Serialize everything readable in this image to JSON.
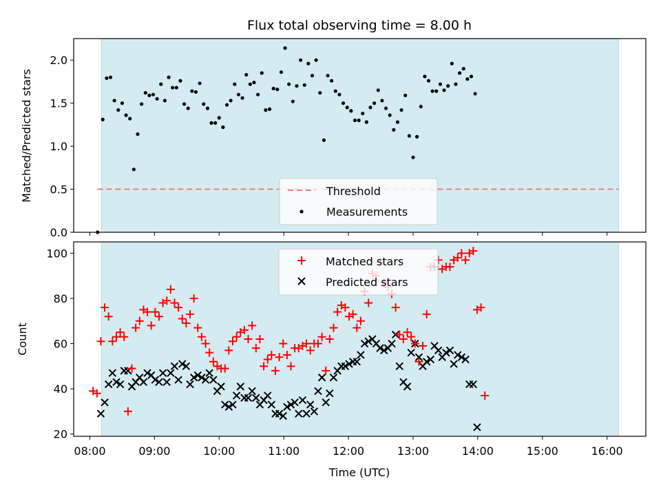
{
  "chart_data": {
    "type": "scatter",
    "title": "Flux total observing time = 8.00 h",
    "xlabel": "Time (UTC)",
    "x_ticks": [
      "08:00",
      "09:00",
      "10:00",
      "11:00",
      "12:00",
      "13:00",
      "14:00",
      "15:00",
      "16:00"
    ],
    "x_tick_hours": [
      8,
      9,
      10,
      11,
      12,
      13,
      14,
      15,
      16
    ],
    "xlim_hours": [
      7.75,
      16.6
    ],
    "observing_window_hours": [
      8.18,
      16.18
    ],
    "colors": {
      "window": "#d4ebf1",
      "window_edge": "#b8dbe6",
      "threshold": "#ec7d7d",
      "matched": "#ff0000",
      "predicted": "#000000",
      "measurement": "#000000"
    },
    "panels": [
      {
        "ylabel": "Matched/Predicted stars",
        "ylim": [
          0,
          2.25
        ],
        "y_ticks": [
          "0.0",
          "0.5",
          "1.0",
          "1.5",
          "2.0"
        ],
        "y_tick_values": [
          0,
          0.5,
          1,
          1.5,
          2
        ],
        "threshold": {
          "name": "Threshold",
          "value": 0.5,
          "x_range_hours": [
            8.18,
            16.18
          ]
        },
        "legend": [
          "Threshold",
          "Measurements"
        ],
        "series": [
          {
            "name": "Measurements",
            "t0_hours": 8.2,
            "dt_hours": 0.06,
            "values": [
              1.31,
              1.79,
              1.8,
              1.53,
              1.42,
              1.5,
              1.36,
              1.32,
              0.73,
              1.14,
              1.49,
              1.62,
              1.59,
              1.6,
              1.55,
              1.72,
              1.53,
              1.8,
              1.68,
              1.68,
              1.76,
              1.49,
              1.44,
              1.64,
              1.63,
              1.73,
              1.49,
              1.44,
              1.27,
              1.27,
              1.33,
              1.22,
              1.48,
              1.53,
              1.72,
              1.6,
              1.56,
              1.83,
              1.72,
              1.74,
              1.6,
              1.85,
              1.42,
              1.43,
              1.67,
              1.66,
              1.86,
              2.14,
              1.72,
              1.52,
              1.7,
              2.0,
              1.71,
              1.96,
              1.82,
              2.0,
              1.62,
              1.07,
              1.82,
              1.76,
              1.64,
              1.6,
              1.5,
              1.45,
              1.41,
              1.3,
              1.3,
              1.38,
              1.28,
              1.45,
              1.5,
              1.65,
              1.53,
              1.44,
              1.36,
              1.19,
              1.28,
              1.42,
              1.59,
              1.12,
              0.87,
              1.11,
              1.46,
              1.81,
              1.76,
              1.64,
              1.64,
              1.72,
              1.65,
              1.7,
              1.96,
              1.72,
              1.85,
              1.9,
              1.78,
              1.81,
              1.61
            ]
          }
        ],
        "extra_points": [
          {
            "name": "start-measurement",
            "x_hours": 8.12,
            "value": 0.0
          }
        ]
      },
      {
        "ylabel": "Count",
        "ylim": [
          19,
          105
        ],
        "y_ticks": [
          "20",
          "40",
          "60",
          "80",
          "100"
        ],
        "y_tick_values": [
          20,
          40,
          60,
          80,
          100
        ],
        "legend": [
          "Matched stars",
          "Predicted stars"
        ],
        "series": [
          {
            "name": "Matched stars",
            "t0_hours": 8.05,
            "dt_hours": 0.06,
            "values": [
              39,
              38,
              61,
              76,
              72,
              61,
              63,
              65,
              63,
              30,
              49,
              67,
              70,
              75,
              74,
              68,
              74,
              72,
              78,
              79,
              84,
              78,
              76,
              71,
              69,
              73,
              80,
              67,
              63,
              60,
              56,
              52,
              50,
              49,
              49,
              57,
              61,
              63,
              65,
              66,
              62,
              68,
              58,
              62,
              50,
              53,
              55,
              48,
              54,
              60,
              55,
              50,
              58,
              58,
              59,
              60,
              57,
              60,
              60,
              63,
              48,
              62,
              67,
              74,
              77,
              76,
              72,
              73,
              67,
              70,
              83,
              78,
              91,
              90,
              96,
              87,
              85,
              82,
              76,
              64,
              62,
              65,
              63,
              60,
              52,
              59,
              73,
              94,
              94,
              97,
              93,
              94,
              94,
              97,
              98,
              100,
              97,
              100,
              101,
              75,
              76,
              37
            ]
          },
          {
            "name": "Predicted stars",
            "t0_hours": 8.17,
            "dt_hours": 0.06,
            "values": [
              29,
              34,
              42,
              47,
              43,
              42,
              48,
              48,
              41,
              43,
              45,
              43,
              47,
              46,
              44,
              43,
              47,
              43,
              47,
              50,
              44,
              51,
              50,
              42,
              45,
              46,
              45,
              44,
              47,
              44,
              39,
              41,
              33,
              32,
              33,
              37,
              41,
              36,
              36,
              39,
              36,
              33,
              35,
              37,
              33,
              29,
              29,
              28,
              32,
              33,
              34,
              29,
              35,
              29,
              33,
              30,
              39,
              45,
              34,
              38,
              45,
              48,
              50,
              50,
              51,
              52,
              52,
              55,
              60,
              61,
              62,
              60,
              58,
              57,
              58,
              60,
              64,
              50,
              43,
              41,
              56,
              60,
              54,
              50,
              52,
              53,
              59,
              57,
              54,
              56,
              57,
              51,
              55,
              54,
              53,
              42,
              42,
              23
            ]
          }
        ]
      }
    ]
  }
}
